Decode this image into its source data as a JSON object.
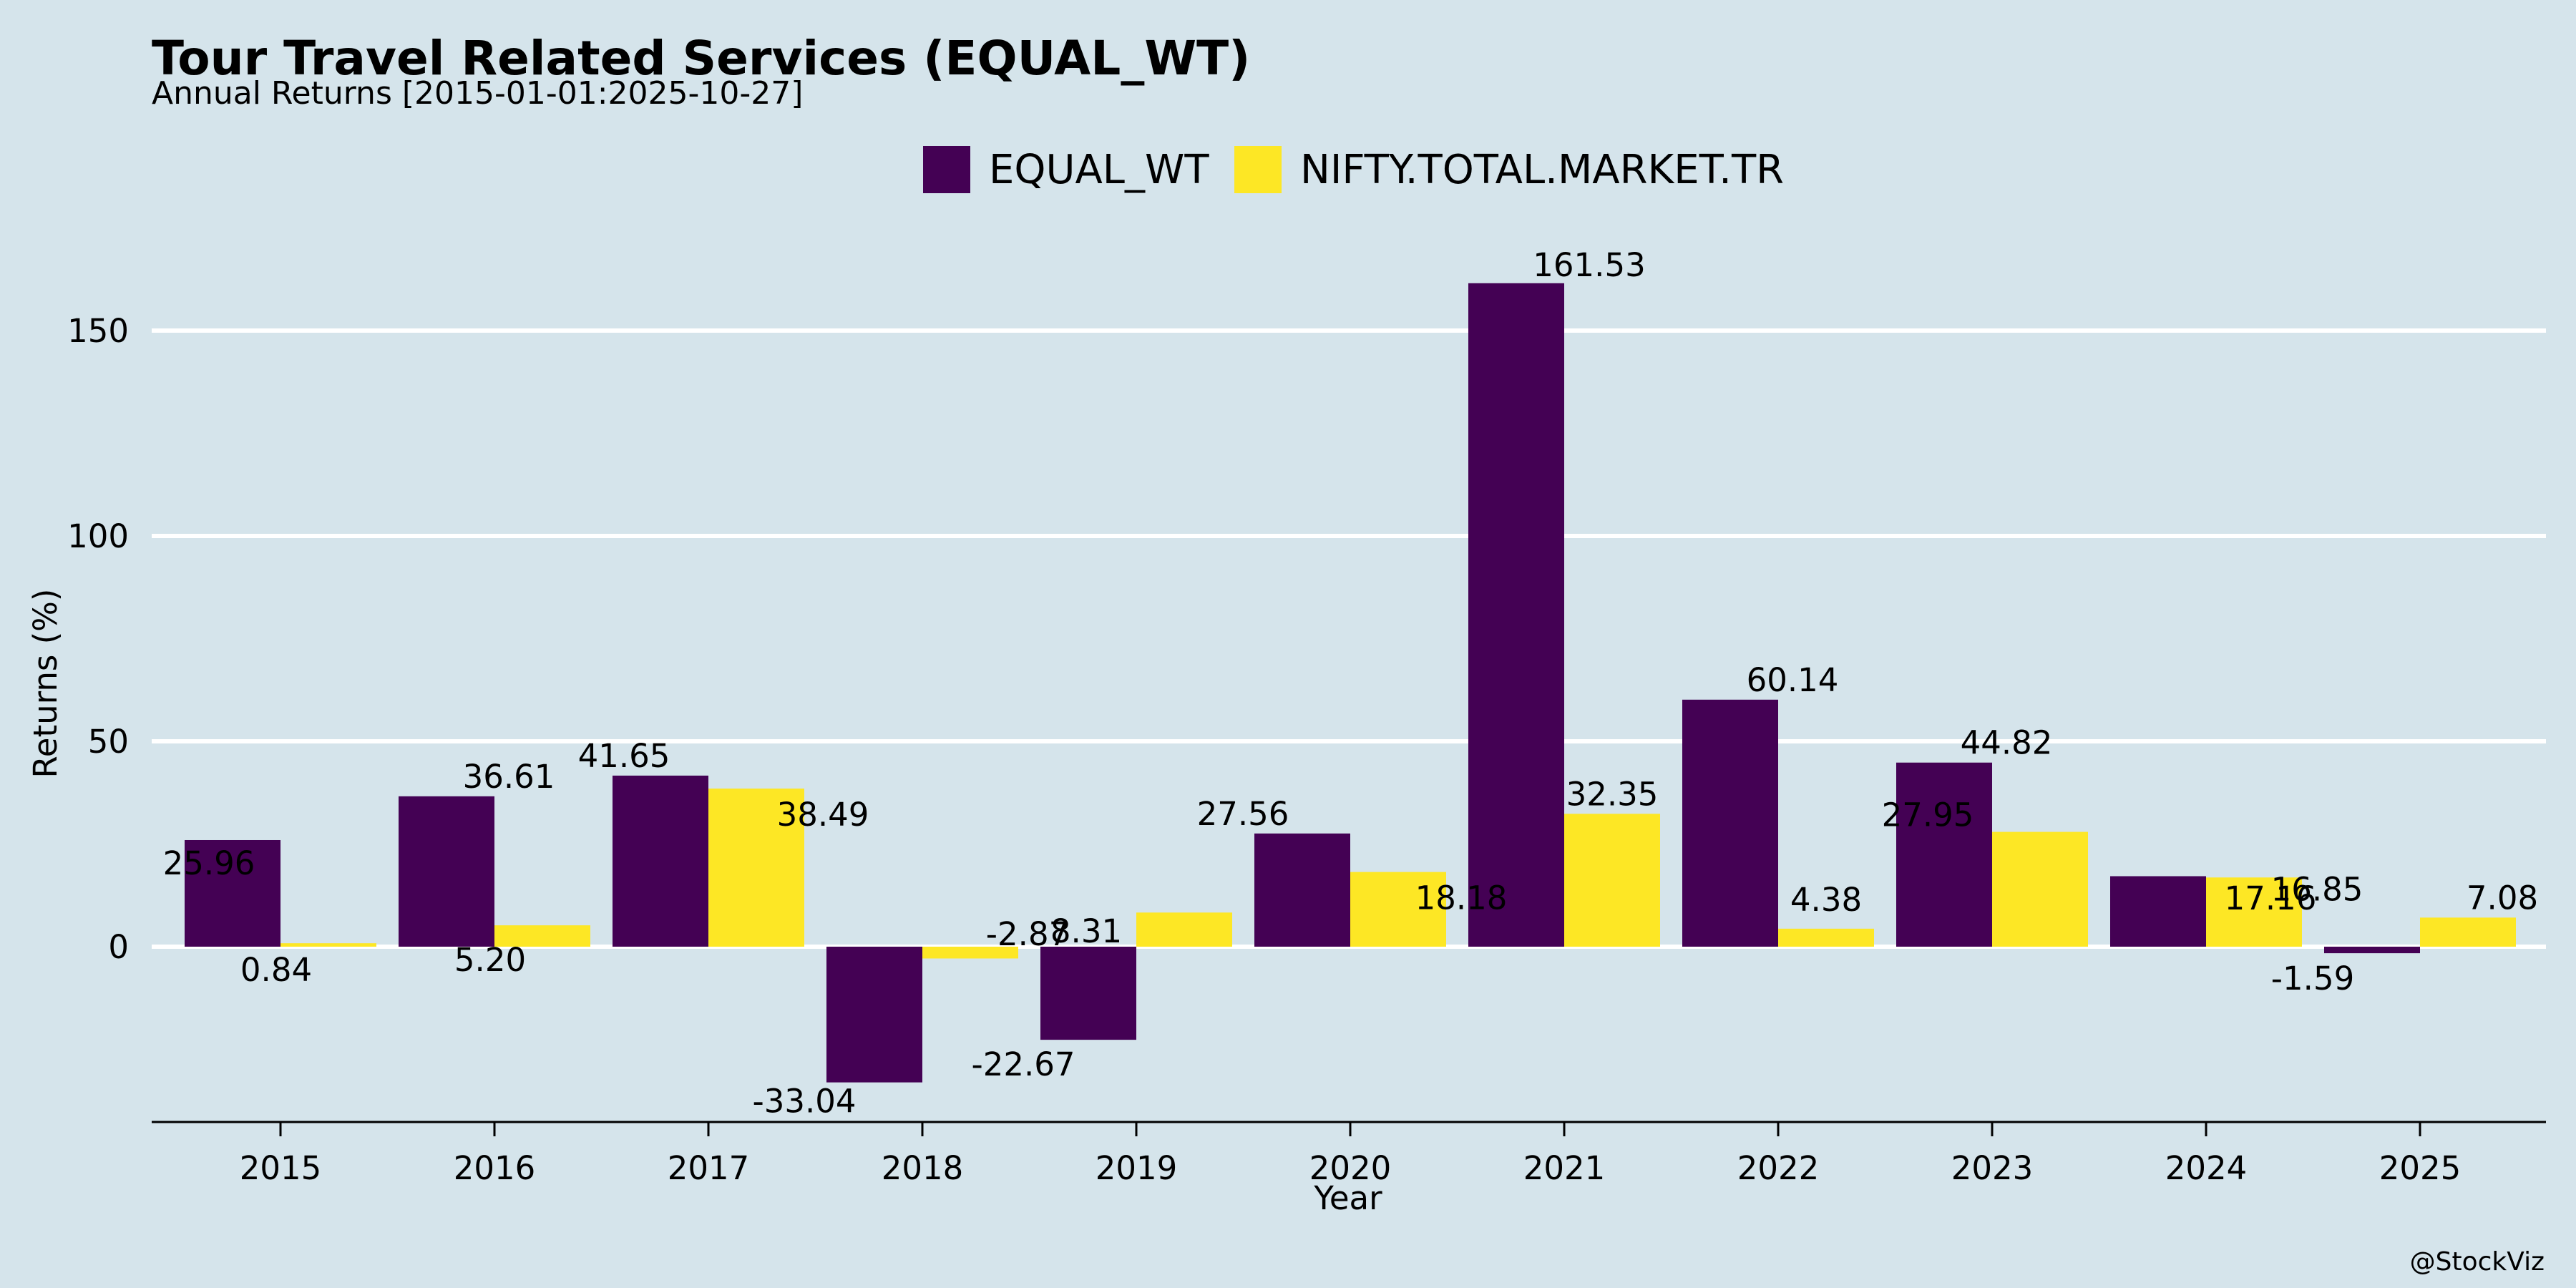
{
  "title": "Tour Travel Related Services (EQUAL_WT)",
  "subtitle": "Annual Returns [2015-01-01:2025-10-27]",
  "credit": "@StockViz",
  "chart_data": {
    "type": "bar",
    "categories": [
      "2015",
      "2016",
      "2017",
      "2018",
      "2019",
      "2020",
      "2021",
      "2022",
      "2023",
      "2024",
      "2025"
    ],
    "series": [
      {
        "name": "EQUAL_WT",
        "color": "#440154",
        "values": [
          25.96,
          36.61,
          41.65,
          -33.04,
          -22.67,
          27.56,
          161.53,
          60.14,
          44.82,
          17.16,
          -1.59
        ],
        "labels": [
          "25.96",
          "36.61",
          "41.65",
          "-33.04",
          "-22.67",
          "27.56",
          "161.53",
          "60.14",
          "44.82",
          "17.16",
          "-1.59"
        ]
      },
      {
        "name": "NIFTY.TOTAL.MARKET.TR",
        "color": "#fde725",
        "values": [
          0.84,
          5.2,
          38.49,
          -2.87,
          8.31,
          18.18,
          32.35,
          4.38,
          27.95,
          16.85,
          7.08
        ],
        "labels": [
          "0.84",
          "5.20",
          "38.49",
          "-2.87",
          "8.31",
          "18.18",
          "32.35",
          "4.38",
          "27.95",
          "16.85",
          "7.08"
        ]
      }
    ],
    "xlabel": "Year",
    "ylabel": "Returns (%)",
    "yticks": [
      0,
      50,
      100,
      150
    ],
    "ylim": [
      -43,
      170
    ],
    "grid": true,
    "legend": "top-center"
  }
}
